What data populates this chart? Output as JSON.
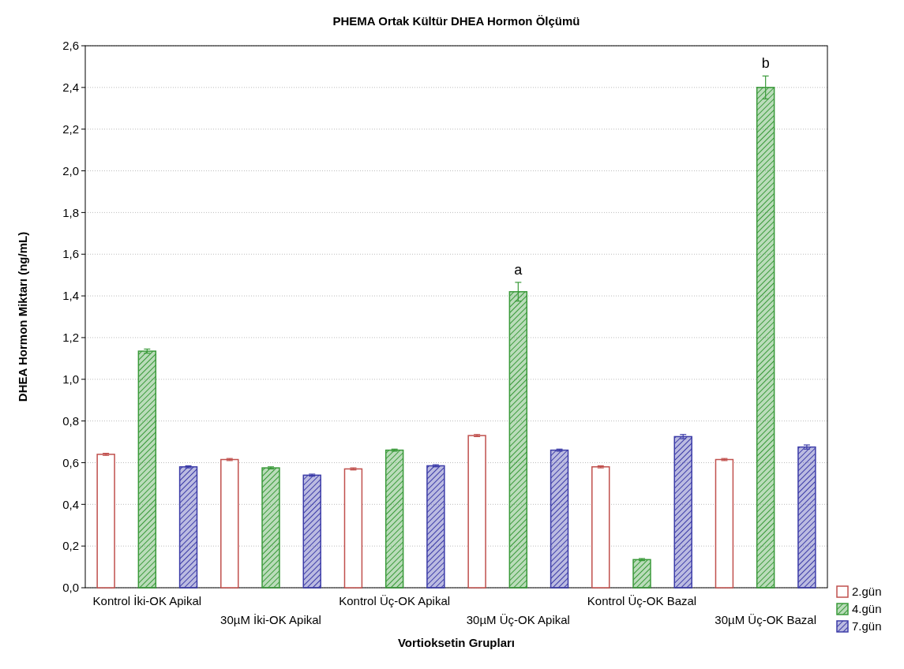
{
  "chart_data": {
    "type": "bar",
    "title": "PHEMA Ortak Kültür DHEA Hormon Ölçümü",
    "xlabel": "Vortioksetin Grupları",
    "ylabel": "DHEA Hormon Miktarı (ng/mL)",
    "categories": [
      "Kontrol  İki-OK Apikal",
      "30µM  İki-OK Apikal",
      "Kontrol  Üç-OK Apikal",
      "30µM  Üç-OK Apikal",
      "Kontrol  Üç-OK Bazal",
      "30µM  Üç-OK Bazal"
    ],
    "series": [
      {
        "name": "2.gün",
        "color": "#c0504d",
        "values": [
          0.64,
          0.615,
          0.57,
          0.73,
          0.58,
          0.615
        ],
        "errors": [
          0.005,
          0.005,
          0.005,
          0.005,
          0.005,
          0.005
        ]
      },
      {
        "name": "4.gün",
        "color": "#3a9a3a",
        "values": [
          1.135,
          0.575,
          0.66,
          1.42,
          0.135,
          2.4
        ],
        "errors": [
          0.01,
          0.005,
          0.005,
          0.045,
          0.005,
          0.055
        ]
      },
      {
        "name": "7.gün",
        "color": "#3c3ca8",
        "values": [
          0.58,
          0.54,
          0.585,
          0.66,
          0.725,
          0.675
        ],
        "errors": [
          0.005,
          0.005,
          0.005,
          0.005,
          0.01,
          0.01
        ]
      }
    ],
    "annotations": [
      {
        "text": "a",
        "x": "30µM  Üç-OK Apikal",
        "y": 1.42
      },
      {
        "text": "b",
        "x": "30µM  Üç-OK Bazal",
        "y": 2.4
      }
    ],
    "ylim": [
      0,
      2.6
    ],
    "yticks": [
      {
        "value": 0,
        "label": "0,0"
      },
      {
        "value": 0.2,
        "label": "0,2"
      },
      {
        "value": 0.4,
        "label": "0,4"
      },
      {
        "value": 0.6,
        "label": "0,6"
      },
      {
        "value": 0.8,
        "label": "0,8"
      },
      {
        "value": 1.0,
        "label": "1,0"
      },
      {
        "value": 1.2,
        "label": "1,2"
      },
      {
        "value": 1.4,
        "label": "1,4"
      },
      {
        "value": 1.6,
        "label": "1,6"
      },
      {
        "value": 1.8,
        "label": "1,8"
      },
      {
        "value": 2.0,
        "label": "2,0"
      },
      {
        "value": 2.2,
        "label": "2,2"
      },
      {
        "value": 2.4,
        "label": "2,4"
      },
      {
        "value": 2.6,
        "label": "2,6"
      }
    ],
    "grid": "y",
    "legend": "bottom right"
  }
}
